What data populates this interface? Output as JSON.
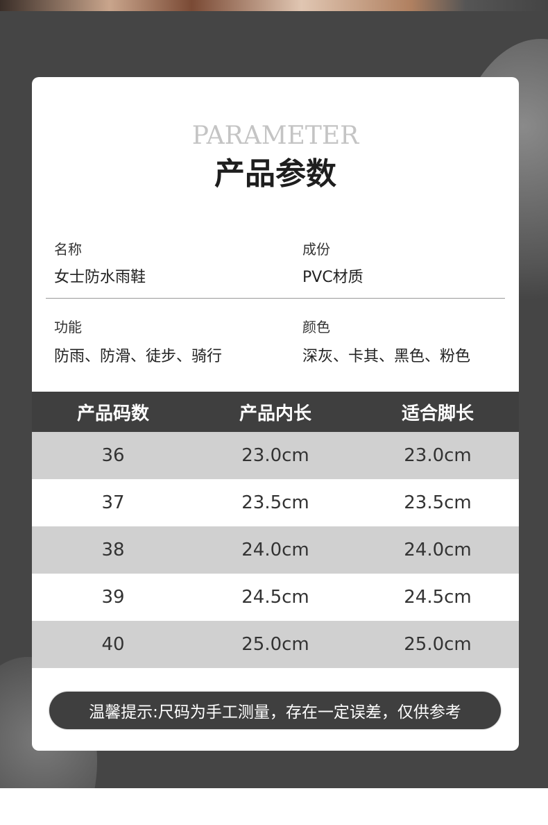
{
  "header": {
    "english_title": "PARAMETER",
    "title": "产品参数",
    "accent_color": "#fdb913"
  },
  "params": [
    {
      "label": "名称",
      "value": "女士防水雨鞋"
    },
    {
      "label": "成份",
      "value": "PVC材质"
    },
    {
      "label": "功能",
      "value": "防雨、防滑、徒步、骑行"
    },
    {
      "label": "颜色",
      "value": "深灰、卡其、黑色、粉色"
    }
  ],
  "size_table": {
    "headers": [
      "产品码数",
      "产品内长",
      "适合脚长"
    ],
    "rows": [
      [
        "36",
        "23.0cm",
        "23.0cm"
      ],
      [
        "37",
        "23.5cm",
        "23.5cm"
      ],
      [
        "38",
        "24.0cm",
        "24.0cm"
      ],
      [
        "39",
        "24.5cm",
        "24.5cm"
      ],
      [
        "40",
        "25.0cm",
        "25.0cm"
      ]
    ]
  },
  "notice": "温馨提示:尺码为手工测量，存在一定误差，仅供参考"
}
